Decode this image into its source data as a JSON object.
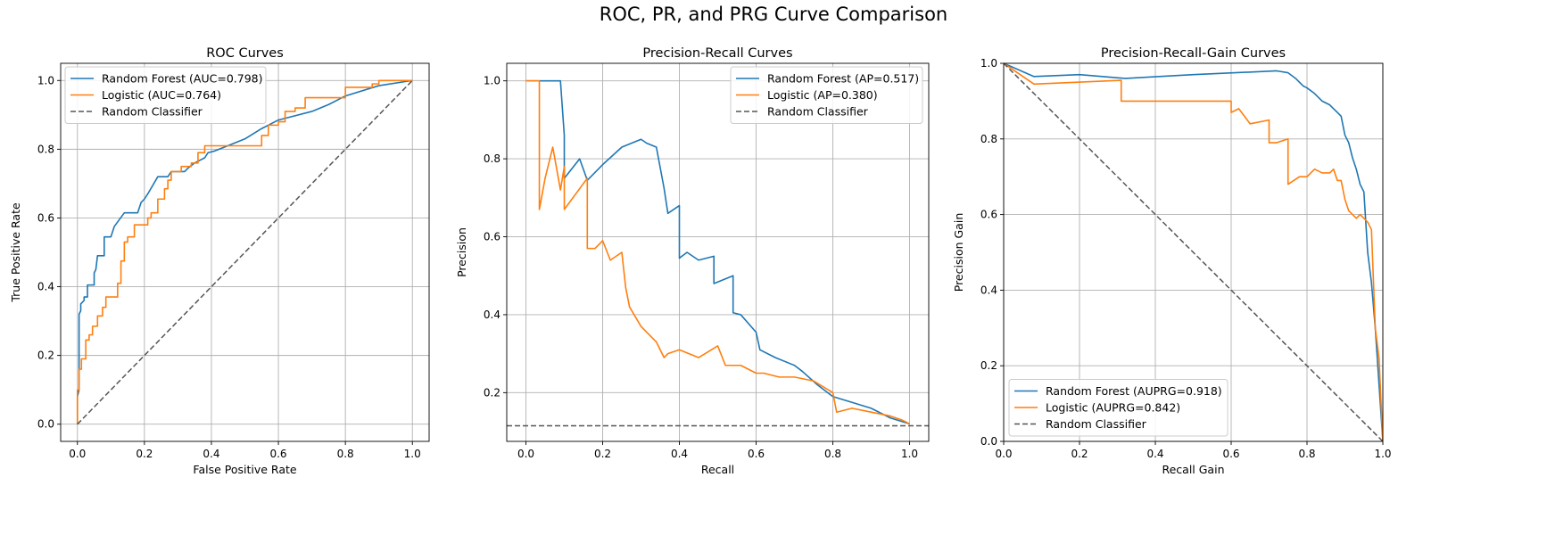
{
  "suptitle": "ROC, PR, and PRG Curve Comparison",
  "colors": {
    "random_forest": "#1f77b4",
    "logistic": "#ff7f0e",
    "baseline": "#555555",
    "grid": "#b0b0b0"
  },
  "chart_data": [
    {
      "type": "line",
      "title": "ROC Curves",
      "xlabel": "False Positive Rate",
      "ylabel": "True Positive Rate",
      "xlim": [
        -0.05,
        1.05
      ],
      "ylim": [
        -0.05,
        1.05
      ],
      "xticks": [
        0.0,
        0.2,
        0.4,
        0.6,
        0.8,
        1.0
      ],
      "yticks": [
        0.0,
        0.2,
        0.4,
        0.6,
        0.8,
        1.0
      ],
      "tick_format": "0.0",
      "grid": true,
      "legend_position": "upper left",
      "series": [
        {
          "name": "Random Forest (AUC=0.798)",
          "color": "#1f77b4",
          "style": "solid",
          "x": [
            0,
            0,
            0.005,
            0.005,
            0.01,
            0.01,
            0.02,
            0.02,
            0.03,
            0.03,
            0.05,
            0.05,
            0.055,
            0.06,
            0.06,
            0.08,
            0.08,
            0.1,
            0.11,
            0.14,
            0.15,
            0.18,
            0.19,
            0.2,
            0.21,
            0.24,
            0.25,
            0.27,
            0.28,
            0.32,
            0.33,
            0.35,
            0.36,
            0.38,
            0.39,
            0.41,
            0.5,
            0.55,
            0.6,
            0.7,
            0.75,
            0.8,
            0.9,
            1.0
          ],
          "y": [
            0,
            0.08,
            0.1,
            0.32,
            0.33,
            0.35,
            0.36,
            0.37,
            0.37,
            0.405,
            0.405,
            0.44,
            0.45,
            0.49,
            0.49,
            0.49,
            0.545,
            0.545,
            0.575,
            0.615,
            0.615,
            0.615,
            0.645,
            0.655,
            0.67,
            0.72,
            0.72,
            0.72,
            0.735,
            0.735,
            0.745,
            0.76,
            0.765,
            0.775,
            0.79,
            0.795,
            0.83,
            0.86,
            0.885,
            0.91,
            0.93,
            0.955,
            0.985,
            1.0
          ]
        },
        {
          "name": "Logistic (AUC=0.764)",
          "color": "#ff7f0e",
          "style": "solid",
          "x": [
            0,
            0,
            0.005,
            0.005,
            0.012,
            0.012,
            0.025,
            0.025,
            0.035,
            0.035,
            0.045,
            0.045,
            0.06,
            0.06,
            0.075,
            0.075,
            0.085,
            0.085,
            0.12,
            0.12,
            0.13,
            0.13,
            0.14,
            0.14,
            0.15,
            0.15,
            0.17,
            0.17,
            0.21,
            0.21,
            0.22,
            0.22,
            0.24,
            0.24,
            0.26,
            0.26,
            0.27,
            0.27,
            0.28,
            0.28,
            0.31,
            0.31,
            0.34,
            0.34,
            0.36,
            0.36,
            0.38,
            0.38,
            0.42,
            0.42,
            0.5,
            0.5,
            0.55,
            0.55,
            0.57,
            0.57,
            0.6,
            0.6,
            0.62,
            0.62,
            0.65,
            0.65,
            0.68,
            0.68,
            0.75,
            0.75,
            0.8,
            0.8,
            0.88,
            0.88,
            0.9,
            0.9,
            1.0
          ],
          "y": [
            0,
            0.1,
            0.1,
            0.16,
            0.16,
            0.19,
            0.19,
            0.245,
            0.245,
            0.26,
            0.26,
            0.285,
            0.285,
            0.315,
            0.315,
            0.34,
            0.34,
            0.37,
            0.37,
            0.41,
            0.41,
            0.475,
            0.475,
            0.53,
            0.53,
            0.545,
            0.545,
            0.58,
            0.58,
            0.6,
            0.6,
            0.615,
            0.615,
            0.655,
            0.655,
            0.685,
            0.685,
            0.71,
            0.71,
            0.735,
            0.735,
            0.75,
            0.75,
            0.76,
            0.76,
            0.79,
            0.79,
            0.81,
            0.81,
            0.81,
            0.81,
            0.81,
            0.81,
            0.84,
            0.84,
            0.87,
            0.87,
            0.88,
            0.88,
            0.91,
            0.91,
            0.92,
            0.92,
            0.95,
            0.95,
            0.95,
            0.95,
            0.98,
            0.98,
            0.99,
            0.99,
            1.0,
            1.0
          ]
        },
        {
          "name": "Random Classifier",
          "color": "#555555",
          "style": "dashed",
          "x": [
            0,
            1
          ],
          "y": [
            0,
            1
          ]
        }
      ]
    },
    {
      "type": "line",
      "title": "Precision-Recall Curves",
      "xlabel": "Recall",
      "ylabel": "Precision",
      "xlim": [
        -0.05,
        1.05
      ],
      "ylim": [
        0.075,
        1.045
      ],
      "xticks": [
        0.0,
        0.2,
        0.4,
        0.6,
        0.8,
        1.0
      ],
      "yticks": [
        0.2,
        0.4,
        0.6,
        0.8,
        1.0
      ],
      "tick_format": "0.0",
      "grid": true,
      "legend_position": "upper right",
      "series": [
        {
          "name": "Random Forest (AP=0.517)",
          "color": "#1f77b4",
          "style": "solid",
          "x": [
            0,
            0.09,
            0.1,
            0.1,
            0.14,
            0.16,
            0.2,
            0.25,
            0.3,
            0.315,
            0.34,
            0.36,
            0.37,
            0.37,
            0.4,
            0.4,
            0.42,
            0.45,
            0.49,
            0.49,
            0.54,
            0.54,
            0.56,
            0.6,
            0.61,
            0.65,
            0.7,
            0.72,
            0.76,
            0.8,
            0.85,
            0.9,
            0.95,
            1.0
          ],
          "y": [
            1.0,
            1.0,
            0.86,
            0.75,
            0.8,
            0.745,
            0.785,
            0.83,
            0.85,
            0.84,
            0.83,
            0.725,
            0.66,
            0.66,
            0.68,
            0.545,
            0.56,
            0.54,
            0.55,
            0.48,
            0.5,
            0.405,
            0.4,
            0.355,
            0.31,
            0.29,
            0.27,
            0.255,
            0.22,
            0.19,
            0.175,
            0.16,
            0.135,
            0.12
          ]
        },
        {
          "name": "Logistic (AP=0.380)",
          "color": "#ff7f0e",
          "style": "solid",
          "x": [
            0,
            0.035,
            0.035,
            0.05,
            0.07,
            0.09,
            0.09,
            0.1,
            0.1,
            0.16,
            0.16,
            0.18,
            0.2,
            0.22,
            0.25,
            0.26,
            0.27,
            0.3,
            0.31,
            0.34,
            0.36,
            0.37,
            0.4,
            0.45,
            0.5,
            0.52,
            0.56,
            0.6,
            0.62,
            0.66,
            0.7,
            0.75,
            0.8,
            0.81,
            0.85,
            0.9,
            0.95,
            0.98,
            1.0
          ],
          "y": [
            1.0,
            1.0,
            0.67,
            0.75,
            0.83,
            0.72,
            0.72,
            0.78,
            0.67,
            0.75,
            0.57,
            0.57,
            0.59,
            0.54,
            0.56,
            0.47,
            0.42,
            0.37,
            0.36,
            0.33,
            0.29,
            0.3,
            0.31,
            0.29,
            0.32,
            0.27,
            0.27,
            0.25,
            0.25,
            0.24,
            0.24,
            0.23,
            0.2,
            0.15,
            0.16,
            0.15,
            0.14,
            0.13,
            0.12
          ]
        },
        {
          "name": "Random Classifier",
          "color": "#555555",
          "style": "dashed",
          "x": [
            -0.05,
            1.05
          ],
          "y": [
            0.115,
            0.115
          ]
        }
      ]
    },
    {
      "type": "line",
      "title": "Precision-Recall-Gain Curves",
      "xlabel": "Recall Gain",
      "ylabel": "Precision Gain",
      "xlim": [
        0,
        1
      ],
      "ylim": [
        0,
        1
      ],
      "xticks": [
        0.0,
        0.2,
        0.4,
        0.6,
        0.8,
        1.0
      ],
      "yticks": [
        0.0,
        0.2,
        0.4,
        0.6,
        0.8,
        1.0
      ],
      "tick_format": "0.0",
      "grid": true,
      "legend_position": "lower left",
      "series": [
        {
          "name": "Random Forest (AUPRG=0.918)",
          "color": "#1f77b4",
          "style": "solid",
          "x": [
            0,
            0.08,
            0.2,
            0.32,
            0.5,
            0.72,
            0.75,
            0.77,
            0.79,
            0.8,
            0.82,
            0.84,
            0.86,
            0.87,
            0.88,
            0.89,
            0.9,
            0.91,
            0.92,
            0.93,
            0.94,
            0.95,
            0.96,
            0.97,
            0.98,
            0.99,
            1.0
          ],
          "y": [
            1.0,
            0.965,
            0.97,
            0.96,
            0.97,
            0.98,
            0.975,
            0.96,
            0.94,
            0.935,
            0.92,
            0.9,
            0.89,
            0.88,
            0.87,
            0.86,
            0.81,
            0.79,
            0.75,
            0.72,
            0.68,
            0.66,
            0.5,
            0.42,
            0.3,
            0.15,
            0.0
          ]
        },
        {
          "name": "Logistic (AUPRG=0.842)",
          "color": "#ff7f0e",
          "style": "solid",
          "x": [
            0,
            0.08,
            0.31,
            0.31,
            0.4,
            0.5,
            0.6,
            0.6,
            0.62,
            0.65,
            0.7,
            0.7,
            0.72,
            0.75,
            0.75,
            0.78,
            0.8,
            0.82,
            0.84,
            0.86,
            0.87,
            0.88,
            0.89,
            0.9,
            0.91,
            0.92,
            0.93,
            0.94,
            0.95,
            0.96,
            0.97,
            0.98,
            0.99,
            1.0
          ],
          "y": [
            1.0,
            0.945,
            0.955,
            0.9,
            0.9,
            0.9,
            0.9,
            0.87,
            0.88,
            0.84,
            0.85,
            0.79,
            0.79,
            0.8,
            0.68,
            0.7,
            0.7,
            0.72,
            0.71,
            0.71,
            0.72,
            0.69,
            0.69,
            0.64,
            0.61,
            0.6,
            0.59,
            0.6,
            0.59,
            0.58,
            0.56,
            0.3,
            0.22,
            0.0
          ]
        },
        {
          "name": "Random Classifier",
          "color": "#555555",
          "style": "dashed",
          "x": [
            0,
            1
          ],
          "y": [
            1,
            0
          ]
        }
      ]
    }
  ]
}
